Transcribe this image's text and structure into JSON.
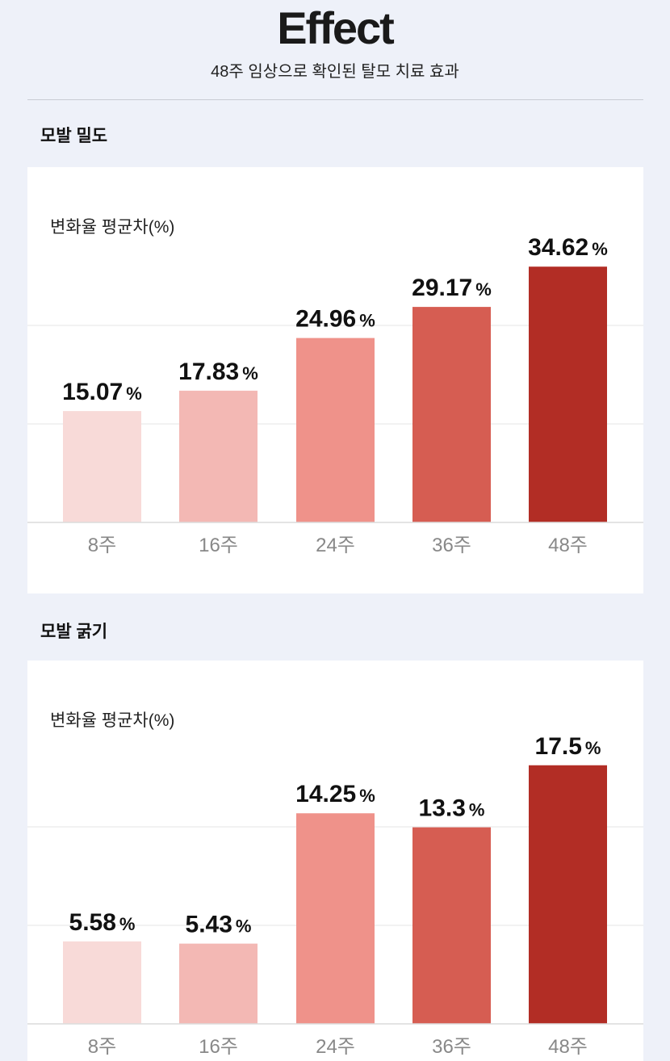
{
  "header": {
    "title": "Effect",
    "subtitle": "48주 임상으로 확인된 탈모 치료 효과"
  },
  "sections": [
    {
      "label": "모발 밀도",
      "card_label": "변화율 평균차(%)"
    },
    {
      "label": "모발 굵기",
      "card_label": "변화율 평균차(%)"
    }
  ],
  "colors": [
    "#f8dad8",
    "#f3b8b4",
    "#ef928a",
    "#d65d52",
    "#b22d25"
  ],
  "chart_data": [
    {
      "type": "bar",
      "title": "모발 밀도",
      "ylabel": "변화율 평균차(%)",
      "categories": [
        "8주",
        "16주",
        "24주",
        "36주",
        "48주"
      ],
      "values": [
        15.07,
        17.83,
        24.96,
        29.17,
        34.62
      ],
      "value_labels": [
        "15.07",
        "17.83",
        "24.96",
        "29.17",
        "34.62"
      ],
      "unit": "%",
      "ylim": [
        0,
        40
      ],
      "grid": true
    },
    {
      "type": "bar",
      "title": "모발 굵기",
      "ylabel": "변화율 평균차(%)",
      "categories": [
        "8주",
        "16주",
        "24주",
        "36주",
        "48주"
      ],
      "values": [
        5.58,
        5.43,
        14.25,
        13.3,
        17.5
      ],
      "value_labels": [
        "5.58",
        "5.43",
        "14.25",
        "13.3",
        "17.5"
      ],
      "unit": "%",
      "ylim": [
        0,
        20
      ],
      "grid": true
    }
  ]
}
